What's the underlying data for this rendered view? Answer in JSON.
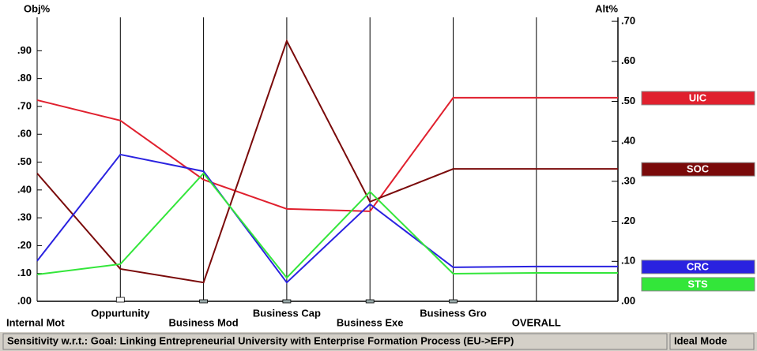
{
  "chart_data": {
    "type": "line",
    "y_label": "Obj%",
    "y2_label": "Alt%",
    "categories": [
      "Internal Mot",
      "Oppurtunity",
      "Business Mod",
      "Business Cap",
      "Business Exe",
      "Business Gro",
      "OVERALL"
    ],
    "ylim": [
      0,
      1.02
    ],
    "yticks": [
      {
        "value": 0,
        "label": ".00"
      },
      {
        "value": 0.1,
        "label": ".10"
      },
      {
        "value": 0.2,
        "label": ".20"
      },
      {
        "value": 0.3,
        "label": ".30"
      },
      {
        "value": 0.4,
        "label": ".40"
      },
      {
        "value": 0.5,
        "label": ".50"
      },
      {
        "value": 0.6,
        "label": ".60"
      },
      {
        "value": 0.7,
        "label": ".70"
      },
      {
        "value": 0.8,
        "label": ".80"
      },
      {
        "value": 0.9,
        "label": ".90"
      }
    ],
    "y2lim": [
      0,
      0.71
    ],
    "y2ticks": [
      {
        "value": 0,
        "label": ".00"
      },
      {
        "value": 0.1,
        "label": ".10"
      },
      {
        "value": 0.2,
        "label": ".20"
      },
      {
        "value": 0.3,
        "label": ".30"
      },
      {
        "value": 0.4,
        "label": ".40"
      },
      {
        "value": 0.5,
        "label": ".50"
      },
      {
        "value": 0.6,
        "label": ".60"
      },
      {
        "value": 0.7,
        "label": ".70"
      }
    ],
    "series": [
      {
        "name": "UIC",
        "color": "#e0202e",
        "axis": "y2",
        "values": [
          0.503,
          0.452,
          0.304,
          0.231,
          0.225,
          0.509,
          0.509
        ]
      },
      {
        "name": "SOC",
        "color": "#7a0a0a",
        "axis": "y2",
        "values": [
          0.32,
          0.081,
          0.047,
          0.651,
          0.249,
          0.331,
          0.331
        ]
      },
      {
        "name": "CRC",
        "color": "#2a22e0",
        "axis": "y2",
        "values": [
          0.101,
          0.367,
          0.325,
          0.047,
          0.243,
          0.085,
          0.087
        ]
      },
      {
        "name": "STS",
        "color": "#33e63a",
        "axis": "y2",
        "values": [
          0.067,
          0.093,
          0.32,
          0.059,
          0.274,
          0.069,
          0.071
        ]
      }
    ],
    "status": "Sensitivity w.r.t.: Goal: Linking Entrepreneurial University with Enterprise Formation Process (EU->EFP)",
    "mode": "Ideal Mode"
  }
}
